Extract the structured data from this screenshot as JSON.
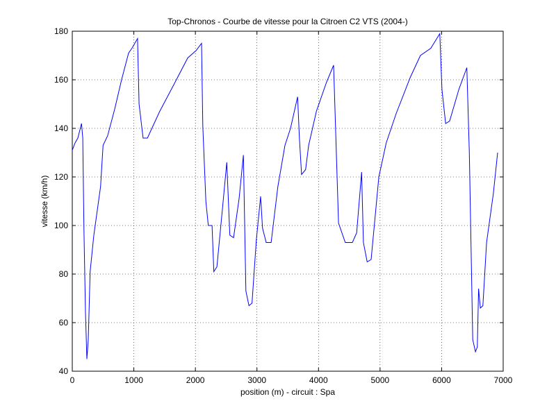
{
  "chart_data": {
    "type": "line",
    "title": "Top-Chronos - Courbe de vitesse pour la Citroen C2 VTS (2004-)",
    "xlabel": "position (m) - circuit : Spa",
    "ylabel": "vitesse (km/h)",
    "color": "#0000ff",
    "grid": true,
    "xlim": [
      0,
      7000
    ],
    "xticks": [
      0,
      1000,
      2000,
      3000,
      4000,
      5000,
      6000,
      7000
    ],
    "ylim": [
      40,
      180
    ],
    "yticks": [
      40,
      60,
      80,
      100,
      120,
      140,
      160,
      180
    ],
    "x": [
      0,
      45,
      90,
      150,
      170,
      190,
      215,
      237,
      260,
      290,
      350,
      460,
      500,
      575,
      690,
      800,
      915,
      970,
      1060,
      1085,
      1150,
      1220,
      1420,
      1650,
      1875,
      2010,
      2100,
      2120,
      2170,
      2210,
      2270,
      2300,
      2350,
      2440,
      2510,
      2560,
      2620,
      2710,
      2780,
      2820,
      2870,
      2920,
      2990,
      3060,
      3090,
      3150,
      3230,
      3340,
      3455,
      3545,
      3660,
      3690,
      3725,
      3790,
      3840,
      3965,
      4130,
      4245,
      4325,
      4435,
      4550,
      4620,
      4700,
      4730,
      4790,
      4855,
      4980,
      5100,
      5260,
      5490,
      5655,
      5825,
      5970,
      6005,
      6065,
      6130,
      6280,
      6410,
      6450,
      6505,
      6550,
      6580,
      6600,
      6630,
      6670,
      6730,
      6840,
      6910
    ],
    "values": [
      131,
      134,
      136,
      142,
      136,
      98,
      64,
      45,
      53,
      81,
      96,
      116,
      133,
      137,
      148,
      160,
      171,
      173,
      177,
      150,
      136,
      136,
      147,
      158,
      169,
      172,
      175,
      141,
      110,
      100,
      100,
      81,
      83,
      107,
      126,
      96,
      95,
      111,
      129,
      73,
      67,
      68,
      94,
      112,
      99,
      93,
      93,
      116,
      133,
      140,
      153,
      136,
      121,
      123,
      133,
      147,
      159,
      166,
      101,
      93,
      93,
      97,
      122,
      93,
      85,
      86,
      120,
      134,
      146,
      161,
      170,
      173,
      179,
      156,
      142,
      143,
      156,
      165,
      130,
      53,
      48,
      50,
      74,
      66,
      67,
      93,
      113,
      130
    ]
  }
}
